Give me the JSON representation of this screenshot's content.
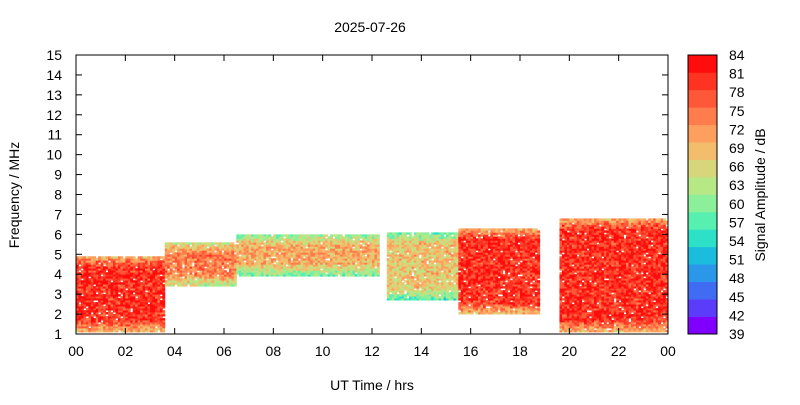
{
  "chart_data": {
    "type": "heatmap",
    "title": "2025-07-26",
    "xlabel": "UT Time / hrs",
    "ylabel": "Frequency / MHz",
    "colorbar_label": "Signal Amplitude / dB",
    "xlim": [
      0,
      24
    ],
    "ylim": [
      1,
      15
    ],
    "x_ticks": [
      "00",
      "02",
      "04",
      "06",
      "08",
      "10",
      "12",
      "14",
      "16",
      "18",
      "20",
      "22",
      "00"
    ],
    "y_ticks": [
      "1",
      "2",
      "3",
      "4",
      "5",
      "6",
      "7",
      "8",
      "9",
      "10",
      "11",
      "12",
      "13",
      "14",
      "15"
    ],
    "colorbar_range": [
      39,
      84
    ],
    "colorbar_ticks": [
      "84",
      "81",
      "78",
      "75",
      "72",
      "69",
      "66",
      "63",
      "60",
      "57",
      "54",
      "51",
      "48",
      "45",
      "42",
      "39"
    ],
    "colorbar_colors": [
      "#8000ff",
      "#5b3cfa",
      "#3f6cf3",
      "#2a97e9",
      "#1cbcdc",
      "#2de0c8",
      "#58f0b0",
      "#8cf09a",
      "#b6e886",
      "#d8d67a",
      "#f2be6c",
      "#ff9f5e",
      "#ff7c4c",
      "#ff5838",
      "#ff3322",
      "#ff0c0c"
    ],
    "grid": false,
    "data_regions": [
      {
        "description_key": "strong",
        "t": [
          0,
          3.6
        ],
        "fmin": 1.1,
        "fmax": 4.9,
        "amp_dB": 80
      },
      {
        "description_key": "mid",
        "t": [
          3.6,
          6.5
        ],
        "fmin": 3.4,
        "fmax": 5.6,
        "amp_dB": 74
      },
      {
        "description_key": "mid",
        "t": [
          6.5,
          12.3
        ],
        "fmin": 3.9,
        "fmax": 6.0,
        "amp_dB": 70
      },
      {
        "description_key": "mid",
        "t": [
          12.6,
          15.5
        ],
        "fmin": 2.7,
        "fmax": 6.1,
        "amp_dB": 68
      },
      {
        "description_key": "strong",
        "t": [
          15.5,
          18.8
        ],
        "fmin": 2.0,
        "fmax": 6.3,
        "amp_dB": 80
      },
      {
        "description_key": "strong",
        "t": [
          19.6,
          24
        ],
        "fmin": 1.1,
        "fmax": 6.8,
        "amp_dB": 80
      }
    ]
  }
}
